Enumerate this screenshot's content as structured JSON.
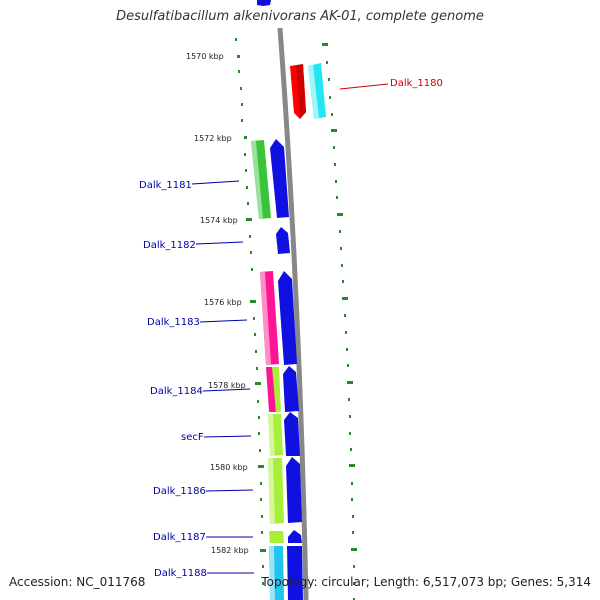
{
  "title": "Desulfatibacillum alkenivorans AK-01, complete genome",
  "accession": "Accession: NC_011768",
  "topology": "Topology: circular; Length: 6,517,073 bp; Genes: 5,314",
  "colors": {
    "label_blue": "#0000aa",
    "label_red": "#cc0000",
    "tick_green": "#2a8a2a",
    "backbone": "#888888"
  },
  "kbp_labels": [
    "1570 kbp",
    "1572 kbp",
    "1574 kbp",
    "1576 kbp",
    "1578 kbp",
    "1580 kbp",
    "1582 kbp"
  ],
  "gene_labels": [
    "Dalk_1180",
    "Dalk_1181",
    "Dalk_1182",
    "Dalk_1183",
    "Dalk_1184",
    "secF",
    "Dalk_1186",
    "Dalk_1187",
    "Dalk_1188"
  ],
  "feature_colors": {
    "red": "#ff0000",
    "cyan": "#22e6f2",
    "blue": "#1010e0",
    "green": "#3ac43a",
    "magenta": "#ff1493",
    "lime": "#a8ee3a",
    "skyblue": "#22c4ee"
  }
}
